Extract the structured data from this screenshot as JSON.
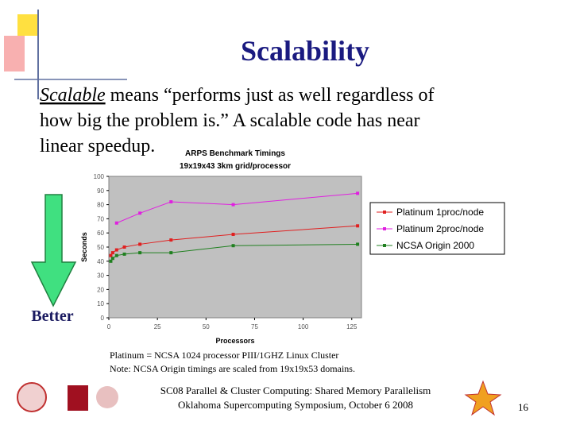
{
  "title": "Scalability",
  "body": {
    "term": "Scalable",
    "lines": [
      "means “performs just as well regardless of",
      "how big the problem is.” A scalable code has near",
      "linear speedup."
    ]
  },
  "arrow_label": "Better",
  "chart_data": {
    "type": "line",
    "title": "ARPS Benchmark Timings",
    "subtitle": "19x19x43 3km grid/processor",
    "x_label": "Processors",
    "y_label": "Seconds",
    "xlim": [
      0,
      130
    ],
    "xticks": [
      0,
      25,
      50,
      75,
      100,
      125
    ],
    "ylim": [
      0,
      100
    ],
    "yticks": [
      0,
      10,
      20,
      30,
      40,
      50,
      60,
      70,
      80,
      90,
      100
    ],
    "legend": "right",
    "plot_background": "#c0c0c0",
    "series": [
      {
        "name": "Platinum 1proc/node",
        "color": "#e02020",
        "x": [
          1,
          2,
          4,
          8,
          16,
          32,
          64,
          128
        ],
        "values": [
          44,
          46,
          48,
          50,
          52,
          55,
          59,
          65
        ]
      },
      {
        "name": "Platinum 2proc/node",
        "color": "#e020e0",
        "x": [
          4,
          16,
          32,
          64,
          128
        ],
        "values": [
          67,
          74,
          82,
          80,
          88
        ]
      },
      {
        "name": "NCSA Origin 2000",
        "color": "#208020",
        "x": [
          1,
          2,
          4,
          8,
          16,
          32,
          64,
          128
        ],
        "values": [
          40,
          42,
          44,
          45,
          46,
          46,
          51,
          52
        ]
      }
    ]
  },
  "notes": [
    "Platinum = NCSA 1024 processor PIII/1GHZ Linux Cluster",
    "Note: NCSA Origin timings are scaled from 19x19x53 domains."
  ],
  "footer": [
    "SC08 Parallel & Cluster Computing: Shared Memory Parallelism",
    "Oklahoma Supercomputing Symposium, October 6 2008"
  ],
  "page_number": "16"
}
